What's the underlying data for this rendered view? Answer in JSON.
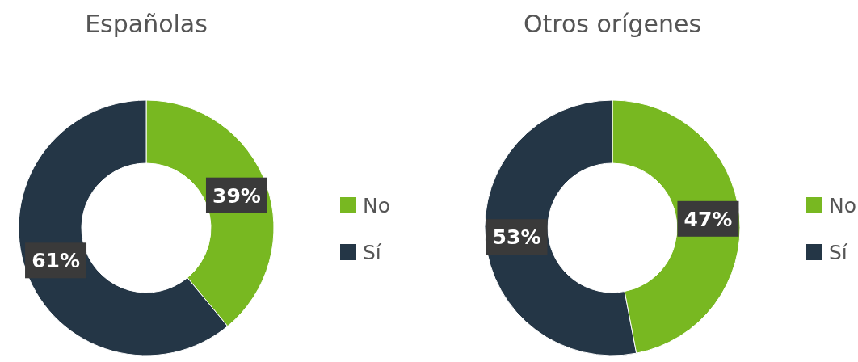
{
  "chart_data": [
    {
      "type": "donut",
      "title": "Españolas",
      "categories": [
        "No",
        "Sí"
      ],
      "values": [
        39,
        61
      ],
      "colors": [
        "#78b821",
        "#243646"
      ],
      "value_labels": [
        "39%",
        "61%"
      ],
      "legend": "right"
    },
    {
      "type": "donut",
      "title": "Otros orígenes",
      "categories": [
        "No",
        "Sí"
      ],
      "values": [
        47,
        53
      ],
      "colors": [
        "#78b821",
        "#243646"
      ],
      "value_labels": [
        "47%",
        "53%"
      ],
      "legend": "right"
    }
  ]
}
